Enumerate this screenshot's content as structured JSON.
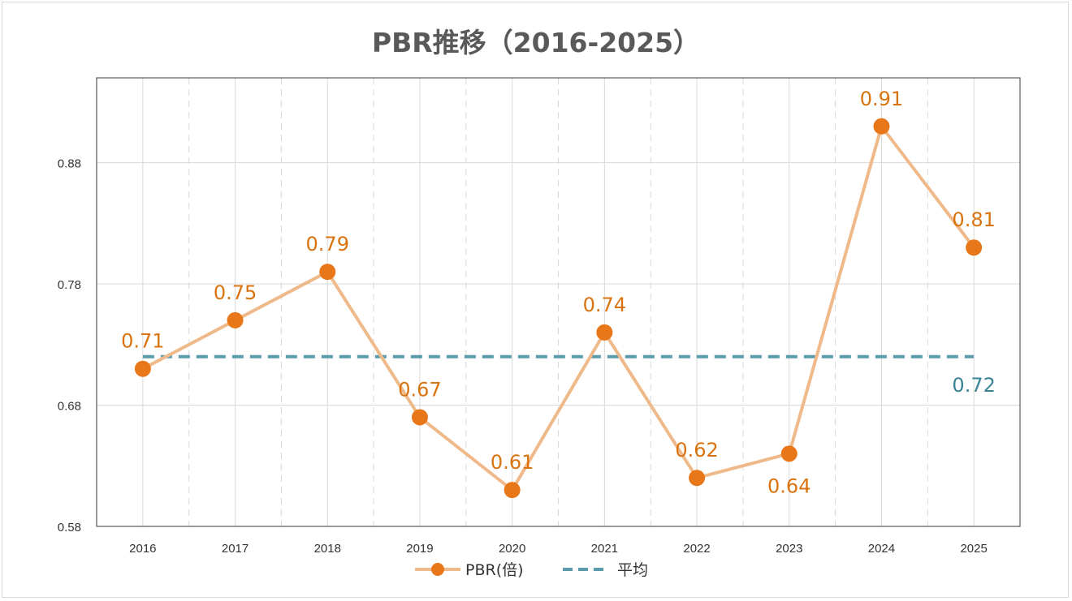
{
  "title": "PBR推移（2016-2025）",
  "colors": {
    "series_line": "#f0b98a",
    "series_marker": "#e8771a",
    "series_label": "#d9730f",
    "average_line": "#5b9bab",
    "average_label": "#3a8496",
    "grid": "#d9d9d9",
    "axis": "#595959"
  },
  "chart_data": {
    "type": "line",
    "title": "PBR推移（2016-2025）",
    "categories": [
      "2016",
      "2017",
      "2018",
      "2019",
      "2020",
      "2021",
      "2022",
      "2023",
      "2024",
      "2025"
    ],
    "series": [
      {
        "name": "PBR(倍)",
        "values": [
          0.71,
          0.75,
          0.79,
          0.67,
          0.61,
          0.74,
          0.62,
          0.64,
          0.91,
          0.81
        ],
        "labels": [
          "0.71",
          "0.75",
          "0.79",
          "0.67",
          "0.61",
          "0.74",
          "0.62",
          "0.64",
          "0.91",
          "0.81"
        ]
      },
      {
        "name": "平均",
        "style": "dashed",
        "value": 0.72,
        "label": "0.72"
      }
    ],
    "ylim": [
      0.58,
      0.95
    ],
    "yticks": [
      0.58,
      0.68,
      0.78,
      0.88
    ],
    "ytick_labels": [
      "0.58",
      "0.68",
      "0.78",
      "0.88"
    ],
    "grid": true,
    "legend": "bottom"
  }
}
